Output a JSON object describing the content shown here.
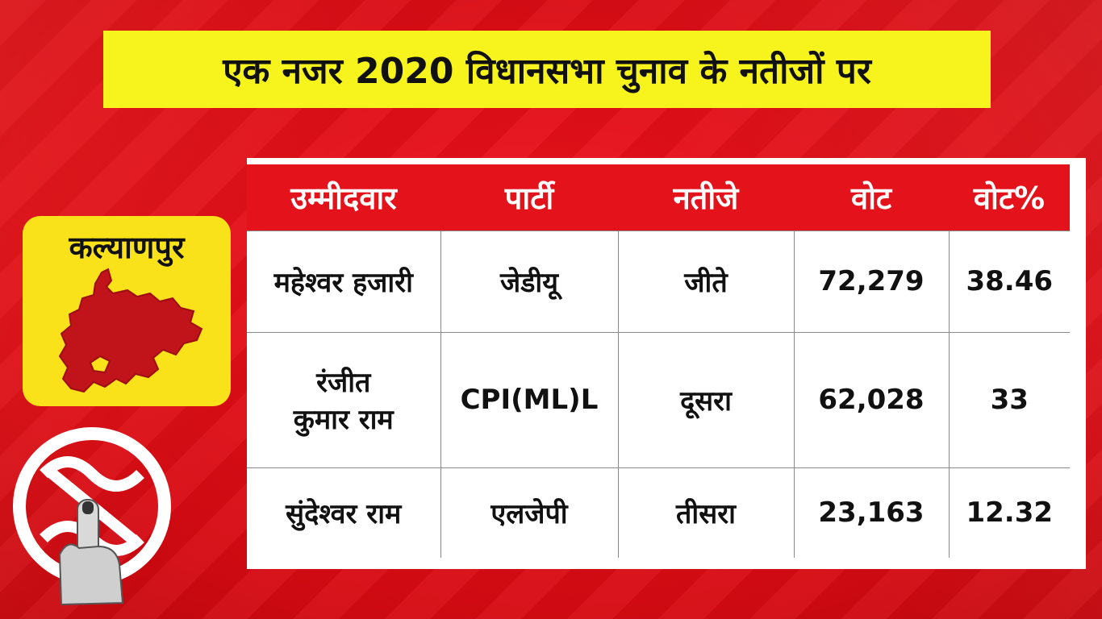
{
  "banner": {
    "title": "एक नजर 2020 विधानसभा चुनाव के नतीजों पर"
  },
  "constituency": {
    "name": "कल्याणपुर",
    "map_color": "#c0141a"
  },
  "colors": {
    "background": "#e8101a",
    "banner": "#f6f41c",
    "badge": "#f9e21a",
    "header_row": "#e4131b"
  },
  "table": {
    "headers": [
      "उम्मीदवार",
      "पार्टी",
      "नतीजे",
      "वोट",
      "वोट%"
    ],
    "rows": [
      {
        "candidate": "महेश्वर हजारी",
        "party": "जेडीयू",
        "result": "जीते",
        "votes": "72,279",
        "vote_pct": "38.46"
      },
      {
        "candidate_line1": "रंजीत",
        "candidate_line2": "कुमार राम",
        "party": "CPI(ML)L",
        "result": "दूसरा",
        "votes": "62,028",
        "vote_pct": "33"
      },
      {
        "candidate": "सुंदेश्वर राम",
        "party": "एलजेपी",
        "result": "तीसरा",
        "votes": "23,163",
        "vote_pct": "12.32"
      }
    ]
  },
  "icons": {
    "map": "district-map-icon",
    "logo": "election-ink-finger-logo"
  }
}
